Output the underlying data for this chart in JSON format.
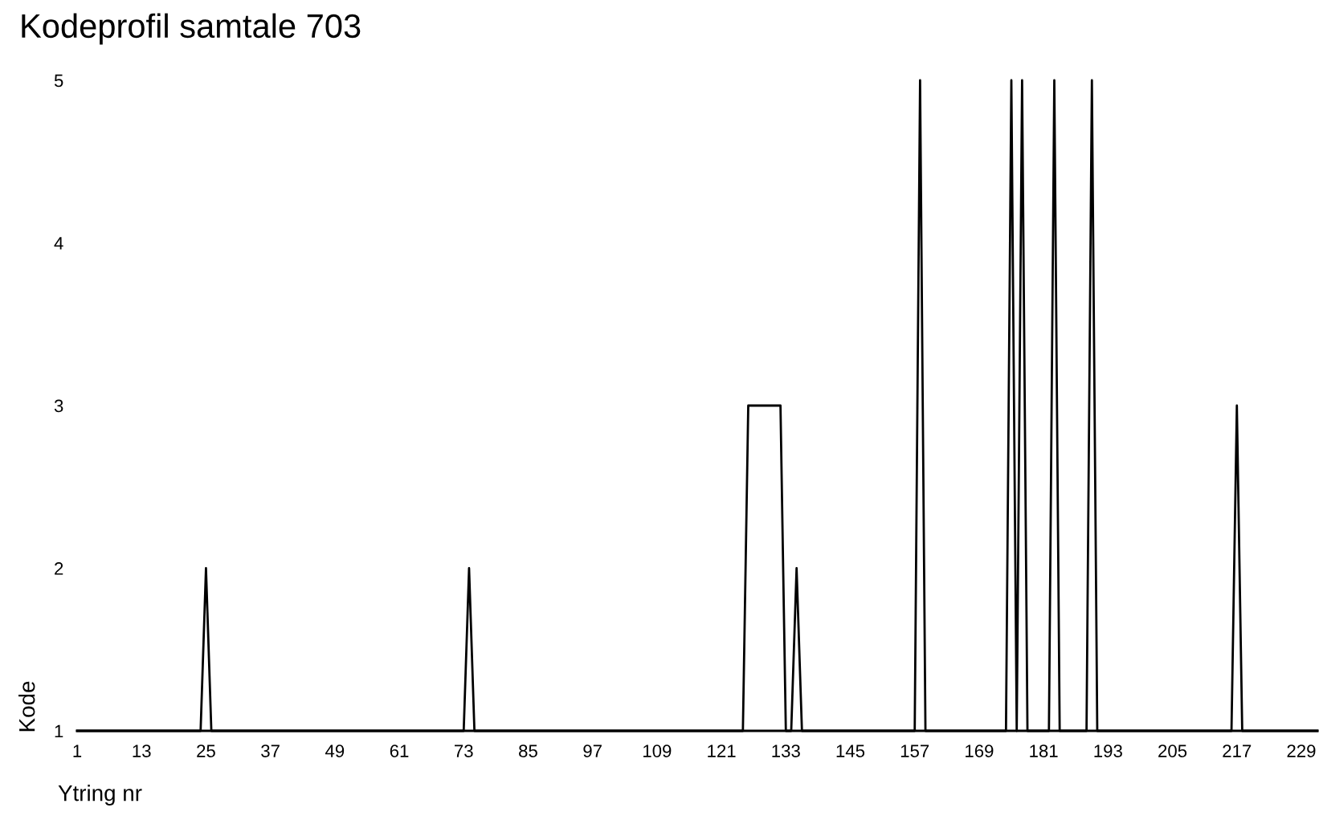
{
  "chart_data": {
    "type": "line",
    "title": "Kodeprofil samtale 703",
    "xlabel": "Ytring nr",
    "ylabel": "Kode",
    "x": [
      1,
      2,
      3,
      4,
      5,
      6,
      7,
      8,
      9,
      10,
      11,
      12,
      13,
      14,
      15,
      16,
      17,
      18,
      19,
      20,
      21,
      22,
      23,
      24,
      25,
      26,
      27,
      28,
      29,
      30,
      31,
      32,
      33,
      34,
      35,
      36,
      37,
      38,
      39,
      40,
      41,
      42,
      43,
      44,
      45,
      46,
      47,
      48,
      49,
      50,
      51,
      52,
      53,
      54,
      55,
      56,
      57,
      58,
      59,
      60,
      61,
      62,
      63,
      64,
      65,
      66,
      67,
      68,
      69,
      70,
      71,
      72,
      73,
      74,
      75,
      76,
      77,
      78,
      79,
      80,
      81,
      82,
      83,
      84,
      85,
      86,
      87,
      88,
      89,
      90,
      91,
      92,
      93,
      94,
      95,
      96,
      97,
      98,
      99,
      100,
      101,
      102,
      103,
      104,
      105,
      106,
      107,
      108,
      109,
      110,
      111,
      112,
      113,
      114,
      115,
      116,
      117,
      118,
      119,
      120,
      121,
      122,
      123,
      124,
      125,
      126,
      127,
      128,
      129,
      130,
      131,
      132,
      133,
      134,
      135,
      136,
      137,
      138,
      139,
      140,
      141,
      142,
      143,
      144,
      145,
      146,
      147,
      148,
      149,
      150,
      151,
      152,
      153,
      154,
      155,
      156,
      157,
      158,
      159,
      160,
      161,
      162,
      163,
      164,
      165,
      166,
      167,
      168,
      169,
      170,
      171,
      172,
      173,
      174,
      175,
      176,
      177,
      178,
      179,
      180,
      181,
      182,
      183,
      184,
      185,
      186,
      187,
      188,
      189,
      190,
      191,
      192,
      193,
      194,
      195,
      196,
      197,
      198,
      199,
      200,
      201,
      202,
      203,
      204,
      205,
      206,
      207,
      208,
      209,
      210,
      211,
      212,
      213,
      214,
      215,
      216,
      217,
      218,
      219,
      220,
      221,
      222,
      223,
      224,
      225,
      226,
      227,
      228,
      229,
      230,
      231,
      232
    ],
    "series": [
      {
        "color": "#000000",
        "values": [
          1,
          1,
          1,
          1,
          1,
          1,
          1,
          1,
          1,
          1,
          1,
          1,
          1,
          1,
          1,
          1,
          1,
          1,
          1,
          1,
          1,
          1,
          1,
          1,
          2,
          1,
          1,
          1,
          1,
          1,
          1,
          1,
          1,
          1,
          1,
          1,
          1,
          1,
          1,
          1,
          1,
          1,
          1,
          1,
          1,
          1,
          1,
          1,
          1,
          1,
          1,
          1,
          1,
          1,
          1,
          1,
          1,
          1,
          1,
          1,
          1,
          1,
          1,
          1,
          1,
          1,
          1,
          1,
          1,
          1,
          1,
          1,
          1,
          2,
          1,
          1,
          1,
          1,
          1,
          1,
          1,
          1,
          1,
          1,
          1,
          1,
          1,
          1,
          1,
          1,
          1,
          1,
          1,
          1,
          1,
          1,
          1,
          1,
          1,
          1,
          1,
          1,
          1,
          1,
          1,
          1,
          1,
          1,
          1,
          1,
          1,
          1,
          1,
          1,
          1,
          1,
          1,
          1,
          1,
          1,
          1,
          1,
          1,
          1,
          1,
          3,
          3,
          3,
          3,
          3,
          3,
          3,
          1,
          1,
          2,
          1,
          1,
          1,
          1,
          1,
          1,
          1,
          1,
          1,
          1,
          1,
          1,
          1,
          1,
          1,
          1,
          1,
          1,
          1,
          1,
          1,
          1,
          5,
          1,
          1,
          1,
          1,
          1,
          1,
          1,
          1,
          1,
          1,
          1,
          1,
          1,
          1,
          1,
          1,
          5,
          1,
          5,
          1,
          1,
          1,
          1,
          1,
          5,
          1,
          1,
          1,
          1,
          1,
          1,
          5,
          1,
          1,
          1,
          1,
          1,
          1,
          1,
          1,
          1,
          1,
          1,
          1,
          1,
          1,
          1,
          1,
          1,
          1,
          1,
          1,
          1,
          1,
          1,
          1,
          1,
          1,
          3,
          1,
          1,
          1,
          1,
          1,
          1,
          1,
          1,
          1,
          1,
          1,
          1,
          1,
          1,
          1
        ]
      }
    ],
    "xlim": [
      1,
      232
    ],
    "ylim": [
      1,
      5
    ],
    "xticks": [
      1,
      13,
      25,
      37,
      49,
      61,
      73,
      85,
      97,
      109,
      121,
      133,
      145,
      157,
      169,
      181,
      193,
      205,
      217,
      229
    ],
    "yticks": [
      1,
      2,
      3,
      4,
      5
    ],
    "grid": false,
    "marker": "none",
    "line_style": "solid"
  }
}
